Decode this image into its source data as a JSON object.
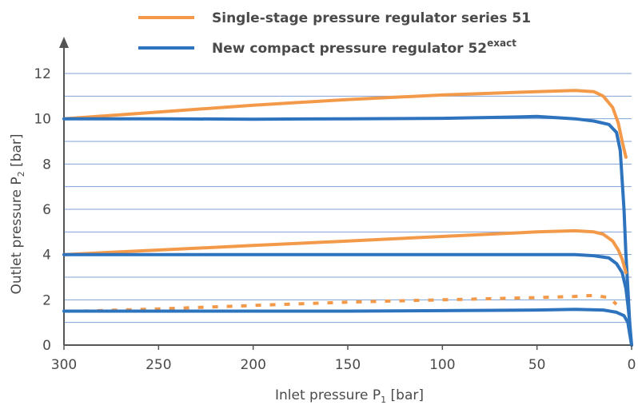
{
  "chart_data": {
    "type": "line",
    "xlabel_main": "Inlet pressure P",
    "xlabel_sub": "1",
    "xlabel_unit": " [bar]",
    "ylabel_main": "Outlet pressure P",
    "ylabel_sub": "2",
    "ylabel_unit": " [bar]",
    "xlim": [
      300,
      0
    ],
    "ylim": [
      0,
      12
    ],
    "x_reversed": true,
    "x_ticks": [
      "300",
      "250",
      "200",
      "150",
      "100",
      "50",
      "0"
    ],
    "x_tick_values": [
      300,
      250,
      200,
      150,
      100,
      50,
      0
    ],
    "y_ticks": [
      "0",
      "2",
      "4",
      "6",
      "8",
      "10",
      "12"
    ],
    "y_tick_values": [
      0,
      2,
      4,
      6,
      8,
      10,
      12
    ],
    "grid": "horizontal",
    "grid_y_values": [
      1,
      2,
      3,
      4,
      5,
      6,
      7,
      8,
      9,
      10,
      11,
      12
    ],
    "legend_position": "top",
    "legend": [
      {
        "label": "Single-stage pressure regulator series 51",
        "label_sup": "",
        "color": "#F39A4A"
      },
      {
        "label": "New compact pressure regulator 52",
        "label_sup": "exact",
        "color": "#2E73BE"
      }
    ],
    "series": [
      {
        "group": "orange",
        "style": "solid",
        "color": "#F39A4A",
        "x": [
          300,
          250,
          200,
          150,
          100,
          50,
          30,
          20,
          15,
          10,
          7,
          5,
          3
        ],
        "y": [
          10.0,
          10.3,
          10.6,
          10.85,
          11.05,
          11.2,
          11.25,
          11.2,
          11.0,
          10.5,
          9.8,
          9.0,
          8.3
        ]
      },
      {
        "group": "blue",
        "style": "solid",
        "color": "#2E73BE",
        "x": [
          300,
          250,
          200,
          150,
          100,
          60,
          50,
          30,
          20,
          12,
          8,
          6,
          4,
          3,
          2,
          1,
          0
        ],
        "y": [
          10.0,
          10.0,
          9.98,
          10.0,
          10.02,
          10.08,
          10.1,
          10.0,
          9.9,
          9.75,
          9.4,
          8.6,
          6.0,
          4.0,
          2.5,
          1.0,
          0.0
        ]
      },
      {
        "group": "orange",
        "style": "solid",
        "color": "#F39A4A",
        "x": [
          300,
          250,
          200,
          150,
          100,
          50,
          30,
          20,
          15,
          10,
          7,
          5,
          3
        ],
        "y": [
          4.0,
          4.2,
          4.4,
          4.6,
          4.8,
          5.0,
          5.05,
          5.0,
          4.9,
          4.6,
          4.2,
          3.8,
          3.2
        ]
      },
      {
        "group": "blue",
        "style": "solid",
        "color": "#2E73BE",
        "x": [
          300,
          250,
          200,
          150,
          100,
          50,
          30,
          20,
          12,
          8,
          5,
          3,
          2,
          1
        ],
        "y": [
          4.0,
          4.0,
          4.0,
          4.0,
          4.0,
          4.0,
          4.0,
          3.95,
          3.85,
          3.6,
          3.2,
          2.5,
          1.8,
          1.0
        ]
      },
      {
        "group": "orange",
        "style": "dashed",
        "color": "#F39A4A",
        "x": [
          290,
          250,
          200,
          150,
          100,
          50,
          30,
          20,
          12,
          8
        ],
        "y": [
          1.5,
          1.6,
          1.75,
          1.9,
          2.0,
          2.1,
          2.15,
          2.2,
          2.1,
          1.8
        ]
      },
      {
        "group": "blue",
        "style": "solid",
        "color": "#2E73BE",
        "x": [
          300,
          250,
          200,
          150,
          100,
          50,
          30,
          15,
          8,
          4,
          2,
          1,
          0
        ],
        "y": [
          1.5,
          1.5,
          1.5,
          1.5,
          1.52,
          1.55,
          1.58,
          1.55,
          1.45,
          1.3,
          1.0,
          0.5,
          0.0
        ]
      }
    ]
  }
}
